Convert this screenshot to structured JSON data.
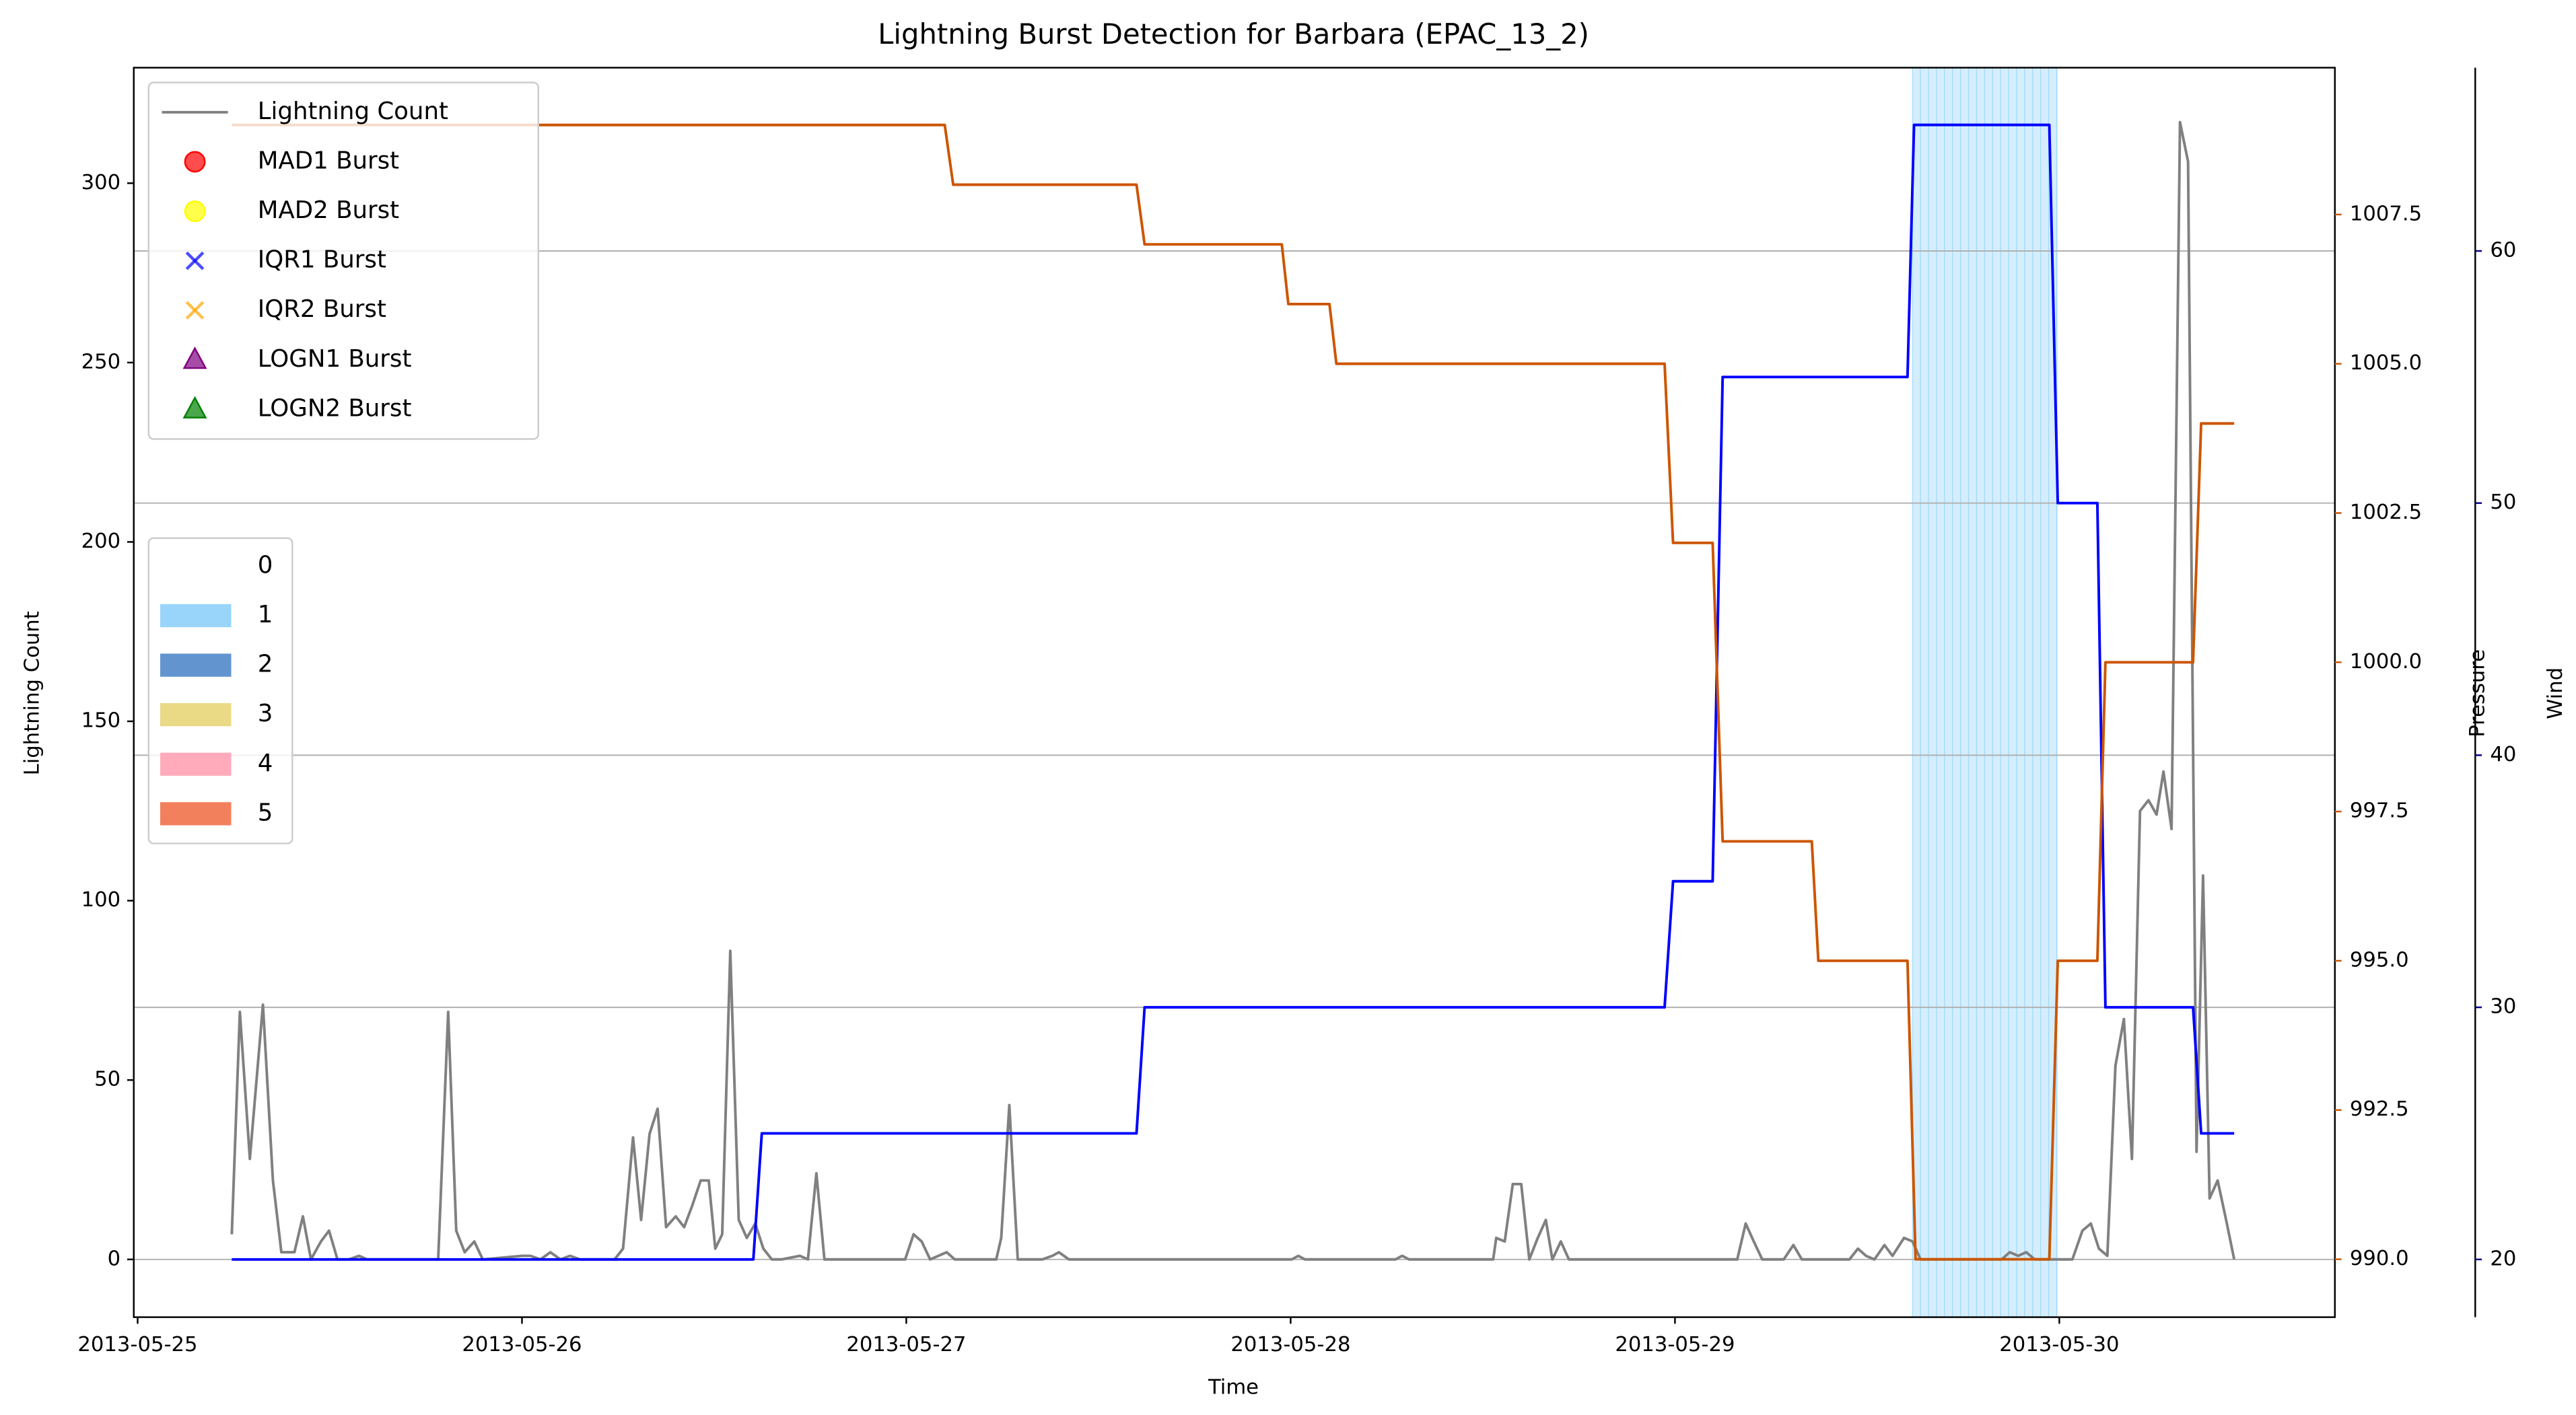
{
  "chart_data": {
    "type": "line",
    "title": "Lightning Burst Detection for Barbara (EPAC_13_2)",
    "x_label": "Time",
    "y_label": "Lightning Count",
    "y2_label": "Pressure",
    "y3_label": "Wind",
    "ycolor": "#808080",
    "y2color": "#cc5500",
    "y3color": "#00008b",
    "xlim": [
      24.99,
      30.717
    ],
    "xticks": [
      {
        "value": 25,
        "label": "2013-05-25"
      },
      {
        "value": 26,
        "label": "2013-05-26"
      },
      {
        "value": 27,
        "label": "2013-05-27"
      },
      {
        "value": 28,
        "label": "2013-05-28"
      },
      {
        "value": 29,
        "label": "2013-05-29"
      },
      {
        "value": 30,
        "label": "2013-05-30"
      }
    ],
    "ylim": [
      -16.1,
      332.2
    ],
    "yticks": [
      0,
      50,
      100,
      150,
      200,
      250,
      300
    ],
    "y2lim": [
      989.03,
      1009.96
    ],
    "y2ticks": [
      {
        "value": 990,
        "label": "990.0"
      },
      992.5,
      {
        "value": 995,
        "label": "995.0"
      },
      997.5,
      {
        "value": 1000,
        "label": "1000.0"
      },
      1002.5,
      {
        "value": 1005,
        "label": "1005.0"
      },
      1007.5
    ],
    "y3lim": [
      17.71,
      67.27
    ],
    "y3ticks": [
      20,
      30,
      40,
      50,
      60
    ],
    "grid": true,
    "grid_axis": "y3",
    "series": [
      {
        "name": "Lightning Count",
        "color": "#808080",
        "axis": "y",
        "x": [
          25.245,
          25.266,
          25.292,
          25.326,
          25.352,
          25.374,
          25.408,
          25.43,
          25.451,
          25.477,
          25.498,
          25.52,
          25.55,
          25.576,
          25.597,
          25.782,
          25.808,
          25.829,
          25.851,
          25.876,
          25.898,
          26.001,
          26.022,
          26.048,
          26.074,
          26.1,
          26.125,
          26.151,
          26.241,
          26.263,
          26.289,
          26.31,
          26.332,
          26.353,
          26.375,
          26.4,
          26.422,
          26.443,
          26.465,
          26.486,
          26.503,
          26.521,
          26.542,
          26.564,
          26.585,
          26.607,
          26.628,
          26.65,
          26.675,
          26.723,
          26.744,
          26.766,
          26.787,
          26.997,
          27.019,
          27.04,
          27.062,
          27.105,
          27.126,
          27.234,
          27.247,
          27.268,
          27.29,
          27.354,
          27.38,
          27.397,
          27.423,
          28.003,
          28.02,
          28.037,
          28.273,
          28.29,
          28.308,
          28.527,
          28.535,
          28.557,
          28.578,
          28.6,
          28.621,
          28.643,
          28.664,
          28.681,
          28.703,
          28.724,
          29.162,
          29.184,
          29.205,
          29.227,
          29.283,
          29.308,
          29.33,
          29.454,
          29.476,
          29.497,
          29.519,
          29.545,
          29.566,
          29.596,
          29.618,
          29.639,
          29.85,
          29.871,
          29.893,
          29.914,
          29.936,
          30.034,
          30.06,
          30.082,
          30.103,
          30.125,
          30.146,
          30.168,
          30.189,
          30.21,
          30.232,
          30.253,
          30.271,
          30.292,
          30.314,
          30.335,
          30.357,
          30.374,
          30.391,
          30.412,
          30.434,
          30.455
        ],
        "values": [
          7,
          69,
          28,
          71,
          22,
          2,
          2,
          12,
          0,
          5,
          8,
          0,
          0,
          1,
          0,
          0,
          69,
          8,
          2,
          5,
          0,
          1,
          1,
          0,
          2,
          0,
          1,
          0,
          0,
          3,
          34,
          11,
          35,
          42,
          9,
          12,
          9,
          15,
          22,
          22,
          3,
          7,
          86,
          11,
          6,
          10,
          3,
          0,
          0,
          1,
          0,
          24,
          0,
          0,
          7,
          5,
          0,
          2,
          0,
          0,
          6,
          43,
          0,
          0,
          1,
          2,
          0,
          0,
          1,
          0,
          0,
          1,
          0,
          0,
          6,
          5,
          21,
          21,
          0,
          6,
          11,
          0,
          5,
          0,
          0,
          10,
          5,
          0,
          0,
          4,
          0,
          0,
          3,
          1,
          0,
          4,
          1,
          6,
          5,
          0,
          0,
          2,
          1,
          2,
          0,
          0,
          8,
          10,
          3,
          1,
          54,
          67,
          28,
          125,
          128,
          124,
          136,
          120,
          317,
          306,
          30,
          107,
          17,
          22,
          11,
          0
        ]
      },
      {
        "color": "#0000ff",
        "axis": "y3",
        "x": [
          25.245,
          26.602,
          26.624,
          27.599,
          27.62,
          28.973,
          28.995,
          29.098,
          29.124,
          29.605,
          29.622,
          29.974,
          29.996,
          30.099,
          30.12,
          30.348,
          30.369,
          30.455
        ],
        "values": [
          20,
          20,
          25,
          25,
          30,
          30,
          35,
          35,
          55,
          55,
          65,
          65,
          50,
          50,
          30,
          30,
          25,
          25
        ]
      },
      {
        "color": "#cc5500",
        "axis": "y2",
        "x": [
          25.245,
          27.1,
          27.122,
          27.599,
          27.62,
          27.977,
          27.994,
          28.101,
          28.119,
          28.973,
          28.995,
          29.098,
          29.124,
          29.356,
          29.373,
          29.605,
          29.626,
          29.974,
          29.996,
          30.099,
          30.12,
          30.348,
          30.369,
          30.455
        ],
        "values": [
          1009,
          1009,
          1008,
          1008,
          1007,
          1007,
          1006,
          1006,
          1005,
          1005,
          1002,
          1002,
          997,
          997,
          995,
          995,
          990,
          990,
          995,
          995,
          1000,
          1000,
          1004,
          1004
        ]
      }
    ],
    "burst_series": [
      {
        "name": "MAD1 Burst",
        "color": "#ff0000",
        "marker": "circle",
        "x": [],
        "values": []
      },
      {
        "name": "MAD2 Burst",
        "color": "#ffff00",
        "marker": "circle",
        "x": [],
        "values": []
      },
      {
        "name": "IQR1 Burst",
        "color": "#0000ff",
        "marker": "x",
        "x": [],
        "values": []
      },
      {
        "name": "IQR2 Burst",
        "color": "#ffa500",
        "marker": "x",
        "x": [],
        "values": []
      },
      {
        "name": "LOGN1 Burst",
        "color": "#800080",
        "marker": "triangle",
        "x": [],
        "values": []
      },
      {
        "name": "LOGN2 Burst",
        "color": "#008000",
        "marker": "triangle",
        "x": [],
        "values": []
      }
    ],
    "shading_legend": {
      "labels": [
        "0",
        "1",
        "2",
        "3",
        "4",
        "5"
      ],
      "colors": [
        "#ffffff",
        "#87cefa",
        "#4682c8",
        "#e6d270",
        "#ff9cb0",
        "#f06a40"
      ]
    },
    "shaded_spans": [
      {
        "start": 29.618,
        "end": 29.996,
        "category": 1
      }
    ]
  }
}
